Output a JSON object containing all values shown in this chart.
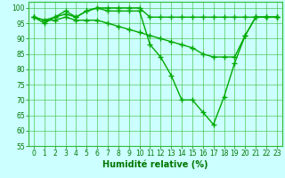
{
  "x": [
    0,
    1,
    2,
    3,
    4,
    5,
    6,
    7,
    8,
    9,
    10,
    11,
    12,
    13,
    14,
    15,
    16,
    17,
    18,
    19,
    20,
    21,
    22,
    23
  ],
  "series": [
    [
      97,
      96,
      97,
      99,
      97,
      99,
      100,
      100,
      100,
      100,
      100,
      97,
      97,
      97,
      97,
      97,
      97,
      97,
      97,
      97,
      97,
      97,
      97,
      97
    ],
    [
      97,
      95,
      97,
      98,
      97,
      99,
      100,
      99,
      99,
      99,
      99,
      88,
      84,
      78,
      70,
      70,
      66,
      62,
      71,
      82,
      91,
      97,
      97,
      97
    ],
    [
      97,
      96,
      96,
      97,
      96,
      96,
      96,
      95,
      94,
      93,
      92,
      91,
      90,
      89,
      88,
      87,
      85,
      84,
      84,
      84,
      91,
      97,
      97,
      97
    ]
  ],
  "line_color": "#00aa00",
  "marker": "+",
  "markersize": 4,
  "linewidth": 1.0,
  "background_color": "#ccffff",
  "grid_color": "#44bb44",
  "xlabel": "Humidité relative (%)",
  "ylim": [
    55,
    102
  ],
  "xlim": [
    -0.5,
    23.5
  ],
  "yticks": [
    55,
    60,
    65,
    70,
    75,
    80,
    85,
    90,
    95,
    100
  ],
  "xticks": [
    0,
    1,
    2,
    3,
    4,
    5,
    6,
    7,
    8,
    9,
    10,
    11,
    12,
    13,
    14,
    15,
    16,
    17,
    18,
    19,
    20,
    21,
    22,
    23
  ],
  "tick_fontsize": 5.5,
  "xlabel_fontsize": 7,
  "tick_color": "#007700",
  "grid_color_hex": "#33bb33",
  "markeredgewidth": 1.0
}
